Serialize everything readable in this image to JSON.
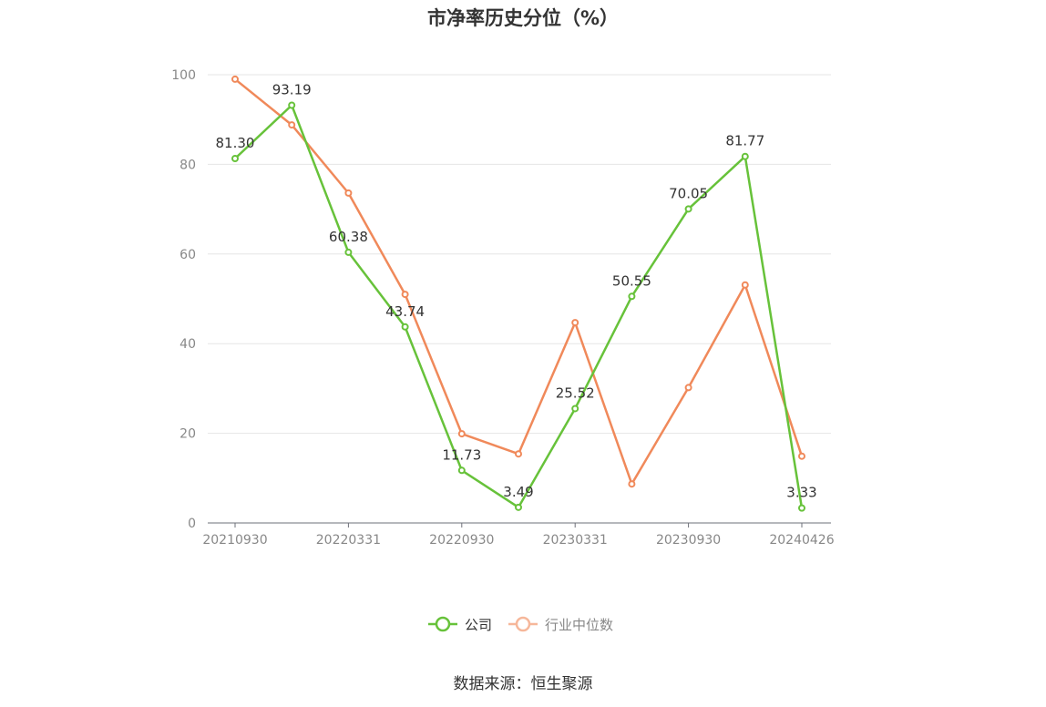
{
  "chart_data": {
    "type": "line",
    "title": "市净率历史分位（%）",
    "source": "数据来源：恒生聚源",
    "ylim": [
      0,
      100
    ],
    "yticks": [
      "0",
      "20",
      "40",
      "60",
      "80",
      "100"
    ],
    "xtick_labels": [
      "20210930",
      "20220331",
      "20220930",
      "20230331",
      "20230930",
      "20240426"
    ],
    "x": [
      "20210930",
      "20211231",
      "20220331",
      "20220630",
      "20220930",
      "20221230",
      "20230331",
      "20230630",
      "20230930",
      "20231229",
      "20240426"
    ],
    "grid": true,
    "legend_position": "bottom",
    "series": [
      {
        "name": "公司",
        "color": "#67c23a",
        "values": [
          81.3,
          93.19,
          60.38,
          43.74,
          11.73,
          3.49,
          25.52,
          50.55,
          70.05,
          81.77,
          3.33
        ],
        "labels": [
          "81.30",
          "93.19",
          "60.38",
          "43.74",
          "11.73",
          "3.49",
          "25.52",
          "50.55",
          "70.05",
          "81.77",
          "3.33"
        ]
      },
      {
        "name": "行业中位数",
        "color": "#f0895a",
        "values": [
          99.0,
          88.8,
          73.6,
          51.0,
          19.9,
          15.4,
          44.7,
          8.7,
          30.2,
          53.1,
          14.9
        ]
      }
    ]
  }
}
